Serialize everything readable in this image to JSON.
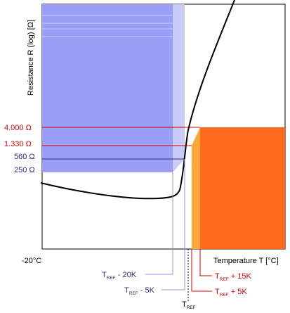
{
  "y_axis_label": "Resistance R (log) [Ω]",
  "x_axis_label": "Temperature T [°C]",
  "x_axis_start": "-20°C",
  "resistance_levels": [
    {
      "label": "4.000 Ω",
      "color": "#d40000"
    },
    {
      "label": "1.330 Ω",
      "color": "#d40000"
    },
    {
      "label": "560 Ω",
      "color": "#2b2f86"
    },
    {
      "label": "250 Ω",
      "color": "#2b2f86"
    }
  ],
  "temperature_markers": [
    {
      "prefix": "T",
      "sub": "REF",
      "suffix": " - 20K",
      "color": "#2b2f86"
    },
    {
      "prefix": "T",
      "sub": "REF",
      "suffix": " - 5K",
      "color": "#2b2f86"
    },
    {
      "prefix": "T",
      "sub": "REF",
      "suffix": "",
      "color": "#000000"
    },
    {
      "prefix": "T",
      "sub": "REF",
      "suffix": " + 5K",
      "color": "#d40000"
    },
    {
      "prefix": "T",
      "sub": "REF",
      "suffix": " + 15K",
      "color": "#d40000"
    }
  ],
  "colors": {
    "cold_region": "#9a9ef6",
    "cold_margin": "#c8caf8",
    "hot_region": "#ff6a1e",
    "hot_margin": "#ffa83a",
    "curve": "#000000",
    "blue_text": "#2b2f86",
    "red_text": "#d40000"
  }
}
